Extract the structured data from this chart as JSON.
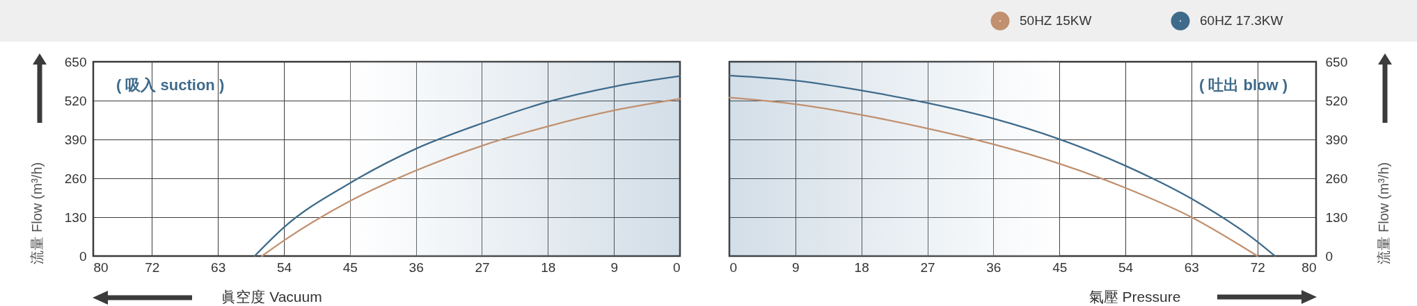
{
  "chart_data": [
    {
      "type": "line",
      "xlabel": "眞空度  Vacuum",
      "ylabel": "流量 Flow (m³/h)",
      "annotations": [
        "( 吸入 suction )"
      ],
      "series": [
        {
          "color": "#c1906f",
          "x": [
            57,
            54,
            45,
            36,
            27,
            18,
            9,
            0
          ],
          "values": [
            0,
            52,
            184,
            286,
            369,
            434,
            487,
            526
          ]
        },
        {
          "color": "#3f6b8b",
          "x": [
            58,
            54,
            45,
            36,
            27,
            18,
            9,
            0
          ],
          "values": [
            0,
            96,
            244,
            359,
            444,
            516,
            567,
            602
          ]
        }
      ],
      "xlim": [
        80,
        0
      ],
      "xticks": [
        80,
        72,
        63,
        54,
        45,
        36,
        27,
        18,
        9,
        0
      ],
      "ylim": [
        0,
        650
      ],
      "yticks": [
        0,
        130,
        260,
        390,
        520,
        650
      ],
      "grid": true,
      "bands": [
        {
          "axis": "x",
          "from": 45,
          "to": 0,
          "color": "#d3dee7"
        }
      ]
    },
    {
      "type": "line",
      "xlabel": "氣壓  Pressure",
      "ylabel": "流量 Flow (m³/h)",
      "annotations": [
        "( 吐出 blow )"
      ],
      "series": [
        {
          "name": "50HZ  15KW",
          "color": "#c1906f",
          "x": [
            0,
            9,
            18,
            27,
            36,
            45,
            54,
            63,
            72
          ],
          "values": [
            530,
            508,
            472,
            427,
            374,
            309,
            228,
            130,
            0
          ]
        },
        {
          "name": "60HZ  17.3KW",
          "color": "#3f6b8b",
          "x": [
            0,
            9,
            18,
            27,
            36,
            45,
            54,
            63,
            72,
            74.4
          ],
          "values": [
            604,
            587,
            554,
            512,
            460,
            391,
            302,
            192,
            48,
            0
          ]
        }
      ],
      "xlim": [
        0,
        80
      ],
      "xticks": [
        0,
        9,
        18,
        27,
        36,
        45,
        54,
        63,
        72,
        80
      ],
      "ylim": [
        0,
        650
      ],
      "yticks": [
        0,
        130,
        260,
        390,
        520,
        650
      ],
      "grid": true,
      "legend": "top right",
      "bands": [
        {
          "axis": "x",
          "from": 45,
          "to": 0,
          "color": "#d3dee7"
        }
      ]
    }
  ]
}
